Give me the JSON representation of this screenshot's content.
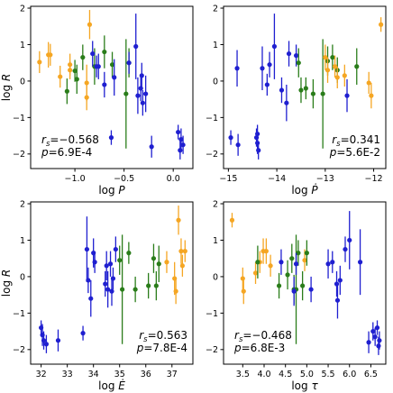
{
  "colors": {
    "blue": "#1f1fd0",
    "green": "#2a7d1a",
    "orange": "#f5a623"
  },
  "chart_data": [
    {
      "type": "scatter",
      "xlabel": "log P",
      "ylabel": "log R",
      "xlim": [
        -1.45,
        0.2
      ],
      "ylim": [
        -2.4,
        2.05
      ],
      "xticks": [
        -1.5,
        -1.0,
        -0.5,
        0.0
      ],
      "xticklabels": [
        "−1.5",
        "−1.0",
        "−0.5",
        "0.0"
      ],
      "yticks": [
        -2,
        -1,
        0,
        1,
        2
      ],
      "yticklabels": [
        "−2",
        "−1",
        "0",
        "1",
        "2"
      ],
      "stat_position": "bottom-left",
      "stat_rs": "r_s=−0.568",
      "stat_p": "p=6.9E-4",
      "series": [
        {
          "color_key": "orange",
          "points": [
            {
              "x": -1.36,
              "y": 0.52,
              "yerr": 0.3
            },
            {
              "x": -1.27,
              "y": 0.72,
              "yerr": 0.35
            },
            {
              "x": -1.25,
              "y": 0.72,
              "yerr": 0.3
            },
            {
              "x": -1.15,
              "y": 0.12,
              "yerr": 0.3
            },
            {
              "x": -1.05,
              "y": 0.45,
              "yerr": 0.3
            },
            {
              "x": -1.05,
              "y": 0.3,
              "yerr": 0.25
            },
            {
              "x": -0.88,
              "y": -0.05,
              "yerr": 0.5
            },
            {
              "x": -0.85,
              "y": 1.55,
              "yerr": 0.4
            },
            {
              "x": -0.88,
              "y": -0.45,
              "yerr": 0.35
            }
          ]
        },
        {
          "color_key": "green",
          "points": [
            {
              "x": -1.08,
              "y": -0.28,
              "yerr": 0.35
            },
            {
              "x": -1.0,
              "y": 0.28,
              "yerr": 0.3
            },
            {
              "x": -0.98,
              "y": 0.05,
              "yerr": 0.4
            },
            {
              "x": -0.92,
              "y": 0.65,
              "yerr": 0.35
            },
            {
              "x": -0.8,
              "y": 0.4,
              "yerr": 0.5
            },
            {
              "x": -0.7,
              "y": 0.8,
              "yerr": 0.45
            },
            {
              "x": -0.62,
              "y": 0.45,
              "yerr": 0.35
            },
            {
              "x": -0.48,
              "y": -0.35,
              "yerr": 1.5
            },
            {
              "x": -0.45,
              "y": 0.5,
              "yerr": 0.4
            }
          ]
        },
        {
          "color_key": "blue",
          "points": [
            {
              "x": -0.82,
              "y": 0.75,
              "yerr": 0.35
            },
            {
              "x": -0.78,
              "y": 0.4,
              "yerr": 0.3
            },
            {
              "x": -0.76,
              "y": 0.4,
              "yerr": 0.35
            },
            {
              "x": -0.7,
              "y": -0.1,
              "yerr": 0.35
            },
            {
              "x": -0.6,
              "y": 0.1,
              "yerr": 0.5
            },
            {
              "x": -0.45,
              "y": 0.5,
              "yerr": 0.3
            },
            {
              "x": -0.38,
              "y": 0.95,
              "yerr": 0.9
            },
            {
              "x": -0.36,
              "y": -0.4,
              "yerr": 0.5
            },
            {
              "x": -0.33,
              "y": -0.2,
              "yerr": 0.35
            },
            {
              "x": -0.31,
              "y": -0.6,
              "yerr": 0.35
            },
            {
              "x": -0.28,
              "y": -0.35,
              "yerr": 0.5
            },
            {
              "x": -0.32,
              "y": 0.15,
              "yerr": 0.35
            },
            {
              "x": -0.63,
              "y": -1.55,
              "yerr": 0.2
            },
            {
              "x": -0.22,
              "y": -1.8,
              "yerr": 0.3
            },
            {
              "x": 0.05,
              "y": -1.4,
              "yerr": 0.2
            },
            {
              "x": 0.08,
              "y": -1.6,
              "yerr": 0.3
            },
            {
              "x": 0.1,
              "y": -1.75,
              "yerr": 0.25
            },
            {
              "x": 0.07,
              "y": -1.9,
              "yerr": 0.25
            }
          ]
        }
      ]
    },
    {
      "type": "scatter",
      "xlabel": "log Ṗ",
      "ylabel": "",
      "xlim": [
        -15.1,
        -11.75
      ],
      "ylim": [
        -2.4,
        2.05
      ],
      "xticks": [
        -15,
        -14,
        -13,
        -12
      ],
      "xticklabels": [
        "−15",
        "−14",
        "−13",
        "−12"
      ],
      "yticks": [
        -2,
        -1,
        0,
        1,
        2
      ],
      "yticklabels": [
        "−2",
        "−1",
        "0",
        "1",
        "2"
      ],
      "stat_position": "bottom-right",
      "stat_rs": "r_s=0.341",
      "stat_p": "p=5.6E-2",
      "series": [
        {
          "color_key": "blue",
          "points": [
            {
              "x": -14.95,
              "y": -1.55,
              "yerr": 0.2
            },
            {
              "x": -14.8,
              "y": -1.75,
              "yerr": 0.3
            },
            {
              "x": -14.42,
              "y": -1.55,
              "yerr": 0.25
            },
            {
              "x": -14.4,
              "y": -1.7,
              "yerr": 0.3
            },
            {
              "x": -14.38,
              "y": -1.9,
              "yerr": 0.25
            },
            {
              "x": -14.4,
              "y": -1.45,
              "yerr": 0.25
            },
            {
              "x": -14.82,
              "y": 0.35,
              "yerr": 0.5
            },
            {
              "x": -14.3,
              "y": 0.35,
              "yerr": 0.6
            },
            {
              "x": -14.2,
              "y": -0.1,
              "yerr": 0.3
            },
            {
              "x": -14.05,
              "y": 0.95,
              "yerr": 0.9
            },
            {
              "x": -14.15,
              "y": 0.45,
              "yerr": 0.35
            },
            {
              "x": -13.9,
              "y": -0.25,
              "yerr": 0.35
            },
            {
              "x": -13.8,
              "y": -0.6,
              "yerr": 0.5
            },
            {
              "x": -13.75,
              "y": 0.75,
              "yerr": 0.35
            },
            {
              "x": -13.6,
              "y": 0.7,
              "yerr": 0.3
            },
            {
              "x": -12.55,
              "y": -0.4,
              "yerr": 0.45
            }
          ]
        },
        {
          "color_key": "green",
          "points": [
            {
              "x": -13.55,
              "y": 0.5,
              "yerr": 0.4
            },
            {
              "x": -13.5,
              "y": -0.25,
              "yerr": 0.35
            },
            {
              "x": -13.25,
              "y": -0.35,
              "yerr": 0.4
            },
            {
              "x": -13.05,
              "y": -0.35,
              "yerr": 1.5
            },
            {
              "x": -12.95,
              "y": 0.55,
              "yerr": 0.4
            },
            {
              "x": -12.85,
              "y": 0.65,
              "yerr": 0.35
            },
            {
              "x": -12.75,
              "y": 0.3,
              "yerr": 0.35
            },
            {
              "x": -12.35,
              "y": 0.4,
              "yerr": 0.5
            },
            {
              "x": -13.4,
              "y": -0.2,
              "yerr": 0.3
            }
          ]
        },
        {
          "color_key": "orange",
          "points": [
            {
              "x": -13.0,
              "y": 0.65,
              "yerr": 0.35
            },
            {
              "x": -12.95,
              "y": 0.3,
              "yerr": 0.35
            },
            {
              "x": -12.8,
              "y": 0.4,
              "yerr": 0.3
            },
            {
              "x": -12.75,
              "y": 0.1,
              "yerr": 0.3
            },
            {
              "x": -12.6,
              "y": 0.15,
              "yerr": 0.3
            },
            {
              "x": -12.1,
              "y": -0.05,
              "yerr": 0.3
            },
            {
              "x": -12.05,
              "y": -0.4,
              "yerr": 0.35
            },
            {
              "x": -11.85,
              "y": 1.55,
              "yerr": 0.2
            }
          ]
        }
      ]
    },
    {
      "type": "scatter",
      "xlabel": "log Ė",
      "ylabel": "log R",
      "xlim": [
        31.6,
        37.8
      ],
      "ylim": [
        -2.4,
        2.05
      ],
      "xticks": [
        32,
        33,
        34,
        35,
        36,
        37
      ],
      "xticklabels": [
        "32",
        "33",
        "34",
        "35",
        "36",
        "37"
      ],
      "yticks": [
        -2,
        -1,
        0,
        1,
        2
      ],
      "yticklabels": [
        "−2",
        "−1",
        "0",
        "1",
        "2"
      ],
      "stat_position": "bottom-right",
      "stat_rs": "r_s=0.563",
      "stat_p": "p=7.8E-4",
      "series": [
        {
          "color_key": "blue",
          "points": [
            {
              "x": 32.0,
              "y": -1.4,
              "yerr": 0.2
            },
            {
              "x": 32.05,
              "y": -1.6,
              "yerr": 0.3
            },
            {
              "x": 32.1,
              "y": -1.75,
              "yerr": 0.25
            },
            {
              "x": 32.2,
              "y": -1.85,
              "yerr": 0.25
            },
            {
              "x": 32.65,
              "y": -1.75,
              "yerr": 0.3
            },
            {
              "x": 33.6,
              "y": -1.55,
              "yerr": 0.2
            },
            {
              "x": 33.75,
              "y": 0.75,
              "yerr": 0.9
            },
            {
              "x": 33.8,
              "y": -0.1,
              "yerr": 0.35
            },
            {
              "x": 33.9,
              "y": -0.6,
              "yerr": 0.5
            },
            {
              "x": 34.0,
              "y": 0.65,
              "yerr": 0.4
            },
            {
              "x": 34.05,
              "y": 0.4,
              "yerr": 0.3
            },
            {
              "x": 34.45,
              "y": -0.2,
              "yerr": 0.35
            },
            {
              "x": 34.5,
              "y": 0.3,
              "yerr": 0.4
            },
            {
              "x": 34.55,
              "y": -0.35,
              "yerr": 0.5
            },
            {
              "x": 34.65,
              "y": 0.35,
              "yerr": 0.35
            },
            {
              "x": 34.7,
              "y": -0.4,
              "yerr": 0.4
            },
            {
              "x": 34.75,
              "y": -0.05,
              "yerr": 0.3
            },
            {
              "x": 34.85,
              "y": 0.75,
              "yerr": 0.35
            }
          ]
        },
        {
          "color_key": "green",
          "points": [
            {
              "x": 35.0,
              "y": 0.45,
              "yerr": 0.4
            },
            {
              "x": 35.1,
              "y": -0.35,
              "yerr": 1.5
            },
            {
              "x": 35.35,
              "y": 0.65,
              "yerr": 0.3
            },
            {
              "x": 35.6,
              "y": -0.35,
              "yerr": 0.35
            },
            {
              "x": 36.1,
              "y": -0.25,
              "yerr": 0.35
            },
            {
              "x": 36.3,
              "y": 0.5,
              "yerr": 0.4
            },
            {
              "x": 36.4,
              "y": -0.25,
              "yerr": 0.4
            },
            {
              "x": 36.5,
              "y": 0.35,
              "yerr": 0.5
            }
          ]
        },
        {
          "color_key": "orange",
          "points": [
            {
              "x": 36.8,
              "y": 0.4,
              "yerr": 0.3
            },
            {
              "x": 37.1,
              "y": -0.05,
              "yerr": 0.45
            },
            {
              "x": 37.15,
              "y": -0.4,
              "yerr": 0.35
            },
            {
              "x": 37.25,
              "y": 1.55,
              "yerr": 0.4
            },
            {
              "x": 37.35,
              "y": 0.7,
              "yerr": 0.35
            },
            {
              "x": 37.4,
              "y": 0.3,
              "yerr": 0.3
            },
            {
              "x": 37.5,
              "y": 0.7,
              "yerr": 0.3
            }
          ]
        }
      ]
    },
    {
      "type": "scatter",
      "xlabel": "log τ",
      "ylabel": "",
      "xlim": [
        3.05,
        6.85
      ],
      "ylim": [
        -2.4,
        2.05
      ],
      "xticks": [
        3.5,
        4.0,
        4.5,
        5.0,
        5.5,
        6.0,
        6.5
      ],
      "xticklabels": [
        "3.5",
        "4.0",
        "4.5",
        "5.0",
        "5.5",
        "6.0",
        "6.5"
      ],
      "yticks": [
        -2,
        -1,
        0,
        1,
        2
      ],
      "yticklabels": [
        "−2",
        "−1",
        "0",
        "1",
        "2"
      ],
      "stat_position": "bottom-left",
      "stat_rs": "r_s=−0.468",
      "stat_p": "p=6.8E-3",
      "series": [
        {
          "color_key": "orange",
          "points": [
            {
              "x": 3.25,
              "y": 1.55,
              "yerr": 0.2
            },
            {
              "x": 3.5,
              "y": -0.05,
              "yerr": 0.3
            },
            {
              "x": 3.52,
              "y": -0.4,
              "yerr": 0.35
            },
            {
              "x": 3.8,
              "y": 0.1,
              "yerr": 0.3
            },
            {
              "x": 3.9,
              "y": 0.4,
              "yerr": 0.3
            },
            {
              "x": 3.98,
              "y": 0.7,
              "yerr": 0.35
            },
            {
              "x": 4.05,
              "y": 0.7,
              "yerr": 0.35
            },
            {
              "x": 4.15,
              "y": 0.3,
              "yerr": 0.3
            },
            {
              "x": 4.95,
              "y": 0.45,
              "yerr": 0.3
            }
          ]
        },
        {
          "color_key": "green",
          "points": [
            {
              "x": 3.85,
              "y": 0.4,
              "yerr": 0.45
            },
            {
              "x": 4.35,
              "y": -0.25,
              "yerr": 0.35
            },
            {
              "x": 4.55,
              "y": 0.05,
              "yerr": 0.4
            },
            {
              "x": 4.7,
              "y": -0.35,
              "yerr": 0.4
            },
            {
              "x": 4.75,
              "y": -0.35,
              "yerr": 1.5
            },
            {
              "x": 4.8,
              "y": 0.65,
              "yerr": 0.35
            },
            {
              "x": 4.9,
              "y": -0.25,
              "yerr": 0.4
            },
            {
              "x": 5.0,
              "y": 0.65,
              "yerr": 0.35
            },
            {
              "x": 4.65,
              "y": 0.5,
              "yerr": 0.4
            }
          ]
        },
        {
          "color_key": "blue",
          "points": [
            {
              "x": 4.4,
              "y": 0.4,
              "yerr": 0.35
            },
            {
              "x": 4.7,
              "y": -0.4,
              "yerr": 0.4
            },
            {
              "x": 4.75,
              "y": 0.35,
              "yerr": 0.3
            },
            {
              "x": 5.1,
              "y": -0.35,
              "yerr": 0.35
            },
            {
              "x": 5.5,
              "y": 0.35,
              "yerr": 0.4
            },
            {
              "x": 5.6,
              "y": 0.4,
              "yerr": 0.3
            },
            {
              "x": 5.7,
              "y": -0.2,
              "yerr": 0.35
            },
            {
              "x": 5.72,
              "y": -0.65,
              "yerr": 0.5
            },
            {
              "x": 5.78,
              "y": -0.1,
              "yerr": 0.4
            },
            {
              "x": 5.9,
              "y": 0.75,
              "yerr": 0.35
            },
            {
              "x": 6.0,
              "y": 1.0,
              "yerr": 0.8
            },
            {
              "x": 6.25,
              "y": 0.4,
              "yerr": 0.9
            },
            {
              "x": 6.45,
              "y": -1.8,
              "yerr": 0.3
            },
            {
              "x": 6.55,
              "y": -1.5,
              "yerr": 0.25
            },
            {
              "x": 6.6,
              "y": -1.65,
              "yerr": 0.25
            },
            {
              "x": 6.65,
              "y": -1.4,
              "yerr": 0.2
            },
            {
              "x": 6.7,
              "y": -1.75,
              "yerr": 0.25
            },
            {
              "x": 6.68,
              "y": -1.9,
              "yerr": 0.25
            }
          ]
        }
      ]
    }
  ]
}
